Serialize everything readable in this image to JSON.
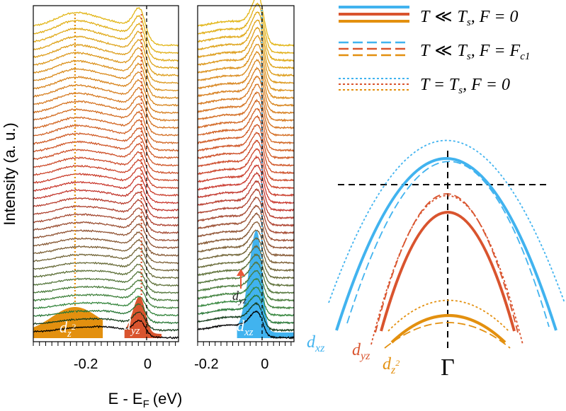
{
  "chart_data": [
    {
      "type": "line",
      "title": "",
      "ylabel": "Intensity (a. u.)",
      "xlabel_main": "E - E",
      "xlabel_sub": "F",
      "xlabel_unit": "(eV)",
      "num_curves": 40,
      "left_panel": {
        "xlim": [
          -0.37,
          0.1
        ],
        "ticks": [
          -0.2,
          0
        ],
        "tick_labels": [
          "-0.2",
          "0"
        ],
        "peak_lines": [
          -0.235,
          -0.02
        ],
        "fills": [
          {
            "label_main": "d",
            "label_sub": "z",
            "label_sup": "2",
            "color": "#e3900f",
            "center": -0.235
          },
          {
            "label_main": "d",
            "label_sub": "yz",
            "color": "#d9542e",
            "center": -0.02
          }
        ]
      },
      "right_panel": {
        "xlim": [
          -0.23,
          0.1
        ],
        "ticks": [
          -0.2,
          0
        ],
        "tick_labels": [
          "-0.2",
          "0"
        ],
        "peak_lines": [
          -0.01
        ],
        "fills": [
          {
            "label_main": "d",
            "label_sub": "xz",
            "color": "#41b3ef",
            "center": -0.02
          }
        ],
        "arrow_label_main": "d",
        "arrow_label_sub": "yz"
      },
      "colors": {
        "top": "#e2b516",
        "middle": "#c8342c",
        "lower": "#2e8a3e",
        "bottom": "#000000"
      }
    },
    {
      "type": "diagram",
      "legend": [
        {
          "style": "solid",
          "text_a": "T",
          "rel": "≪",
          "text_b": "T",
          "sub_b": "s",
          "cond": ", F = 0"
        },
        {
          "style": "dashed",
          "text_a": "T",
          "rel": "≪",
          "text_b": "T",
          "sub_b": "s",
          "cond": ", F = F",
          "cond_sub": "c1"
        },
        {
          "style": "dotted",
          "text_a": "T",
          "rel": "=",
          "text_b": "T",
          "sub_b": "s",
          "cond": ", F = 0"
        }
      ],
      "bands": [
        {
          "name_main": "d",
          "name_sub": "xz",
          "color": "#41b3ef"
        },
        {
          "name_main": "d",
          "name_sub": "yz",
          "color": "#d9542e"
        },
        {
          "name_main": "d",
          "name_sub": "z",
          "name_sup": "2",
          "color": "#e3900f"
        }
      ],
      "gamma_label": "Γ"
    }
  ]
}
